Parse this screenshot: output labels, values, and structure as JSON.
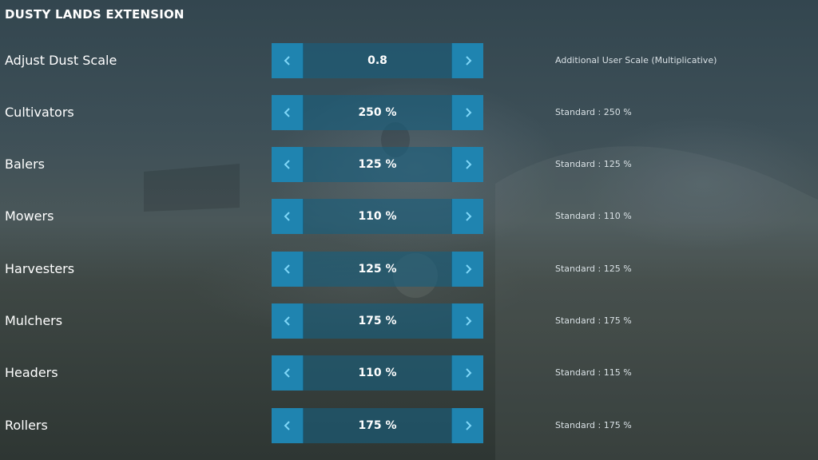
{
  "header": {
    "title": "DUSTY LANDS EXTENSION"
  },
  "rows": [
    {
      "label": "Adjust Dust Scale",
      "value": "0.8",
      "hint": "Additional User Scale (Multiplicative)"
    },
    {
      "label": "Cultivators",
      "value": "250 %",
      "hint": "Standard : 250 %"
    },
    {
      "label": "Balers",
      "value": "125 %",
      "hint": "Standard : 125 %"
    },
    {
      "label": "Mowers",
      "value": "110 %",
      "hint": "Standard : 110 %"
    },
    {
      "label": "Harvesters",
      "value": "125 %",
      "hint": "Standard : 125 %"
    },
    {
      "label": "Mulchers",
      "value": "175 %",
      "hint": "Standard : 175 %"
    },
    {
      "label": "Headers",
      "value": "110 %",
      "hint": "Standard : 115 %"
    },
    {
      "label": "Rollers",
      "value": "175 %",
      "hint": "Standard : 175 %"
    }
  ],
  "icons": {
    "decrease": "chevron-left-icon",
    "increase": "chevron-right-icon"
  },
  "colors": {
    "button": "#1f84b0",
    "value_box": "#185f7e",
    "arrow": "#7fd6f7"
  }
}
